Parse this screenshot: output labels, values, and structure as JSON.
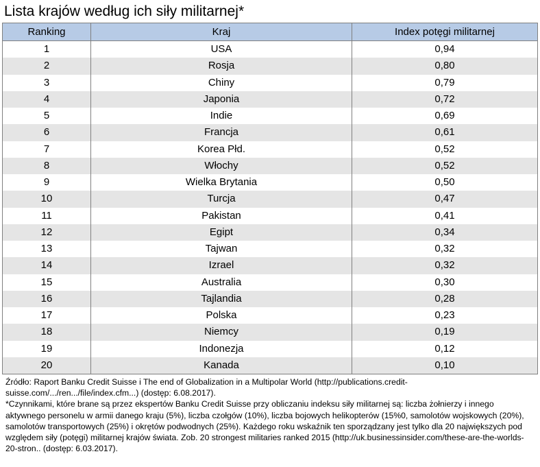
{
  "title": "Lista krajów według ich siły militarnej*",
  "table": {
    "headers": [
      "Ranking",
      "Kraj",
      "Index potęgi militarnej"
    ],
    "rows": [
      [
        "1",
        "USA",
        "0,94"
      ],
      [
        "2",
        "Rosja",
        "0,80"
      ],
      [
        "3",
        "Chiny",
        "0,79"
      ],
      [
        "4",
        "Japonia",
        "0,72"
      ],
      [
        "5",
        "Indie",
        "0,69"
      ],
      [
        "6",
        "Francja",
        "0,61"
      ],
      [
        "7",
        "Korea Płd.",
        "0,52"
      ],
      [
        "8",
        "Włochy",
        "0,52"
      ],
      [
        "9",
        "Wielka Brytania",
        "0,50"
      ],
      [
        "10",
        "Turcja",
        "0,47"
      ],
      [
        "11",
        "Pakistan",
        "0,41"
      ],
      [
        "12",
        "Egipt",
        "0,34"
      ],
      [
        "13",
        "Tajwan",
        "0,32"
      ],
      [
        "14",
        "Izrael",
        "0,32"
      ],
      [
        "15",
        "Australia",
        "0,30"
      ],
      [
        "16",
        "Tajlandia",
        "0,28"
      ],
      [
        "17",
        "Polska",
        "0,23"
      ],
      [
        "18",
        "Niemcy",
        "0,19"
      ],
      [
        "19",
        "Indonezja",
        "0,12"
      ],
      [
        "20",
        "Kanada",
        "0,10"
      ]
    ]
  },
  "footnote": {
    "source": "Źródło: Raport Banku Credit Suisse i The end of Globalization in a Multipolar World (http://publications.credit-suisse.com/.../ren.../file/index.cfm...) (dostęp: 6.08.2017).",
    "note": "*Czynnikami, które brane są przez ekspertów Banku Credit Suisse przy obliczaniu indeksu siły militarnej są: liczba żołnierzy i innego aktywnego personelu w armii danego kraju (5%), liczba czołgów (10%), liczba bojowych helikopterów (15%0, samolotów wojskowych (20%), samolotów transportowych (25%) i  okrętów podwodnych (25%). Każdego roku wskaźnik ten sporządzany jest tylko dla 20 największych pod względem siły (potęgi) militarnej krajów świata. Zob. 20 strongest militaries ranked 2015 (http://uk.businessinsider.com/these-are-the-worlds-20-stron.. (dostęp: 6.03.2017)."
  },
  "colors": {
    "header_background": "#b7cbe6",
    "striped_row_background": "#e5e5e5",
    "border": "#7f7f7f"
  }
}
